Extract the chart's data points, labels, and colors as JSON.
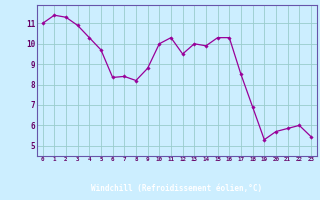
{
  "x": [
    0,
    1,
    2,
    3,
    4,
    5,
    6,
    7,
    8,
    9,
    10,
    11,
    12,
    13,
    14,
    15,
    16,
    17,
    18,
    19,
    20,
    21,
    22,
    23
  ],
  "y": [
    11.0,
    11.4,
    11.3,
    10.9,
    10.3,
    9.7,
    8.35,
    8.4,
    8.2,
    8.8,
    10.0,
    10.3,
    9.5,
    10.0,
    9.9,
    10.3,
    10.3,
    8.5,
    6.9,
    5.3,
    5.7,
    5.85,
    6.0,
    5.45
  ],
  "line_color": "#990099",
  "marker": "D",
  "marker_size": 1.8,
  "bg_color": "#cceeff",
  "grid_color": "#99cccc",
  "xlabel": "Windchill (Refroidissement éolien,°C)",
  "xlabel_color": "white",
  "xlabel_bg": "#6655aa",
  "ytick_labels": [
    "5",
    "6",
    "7",
    "8",
    "9",
    "10",
    "11"
  ],
  "ytick_vals": [
    5,
    6,
    7,
    8,
    9,
    10,
    11
  ],
  "xlim": [
    -0.5,
    23.5
  ],
  "ylim": [
    4.5,
    11.9
  ]
}
